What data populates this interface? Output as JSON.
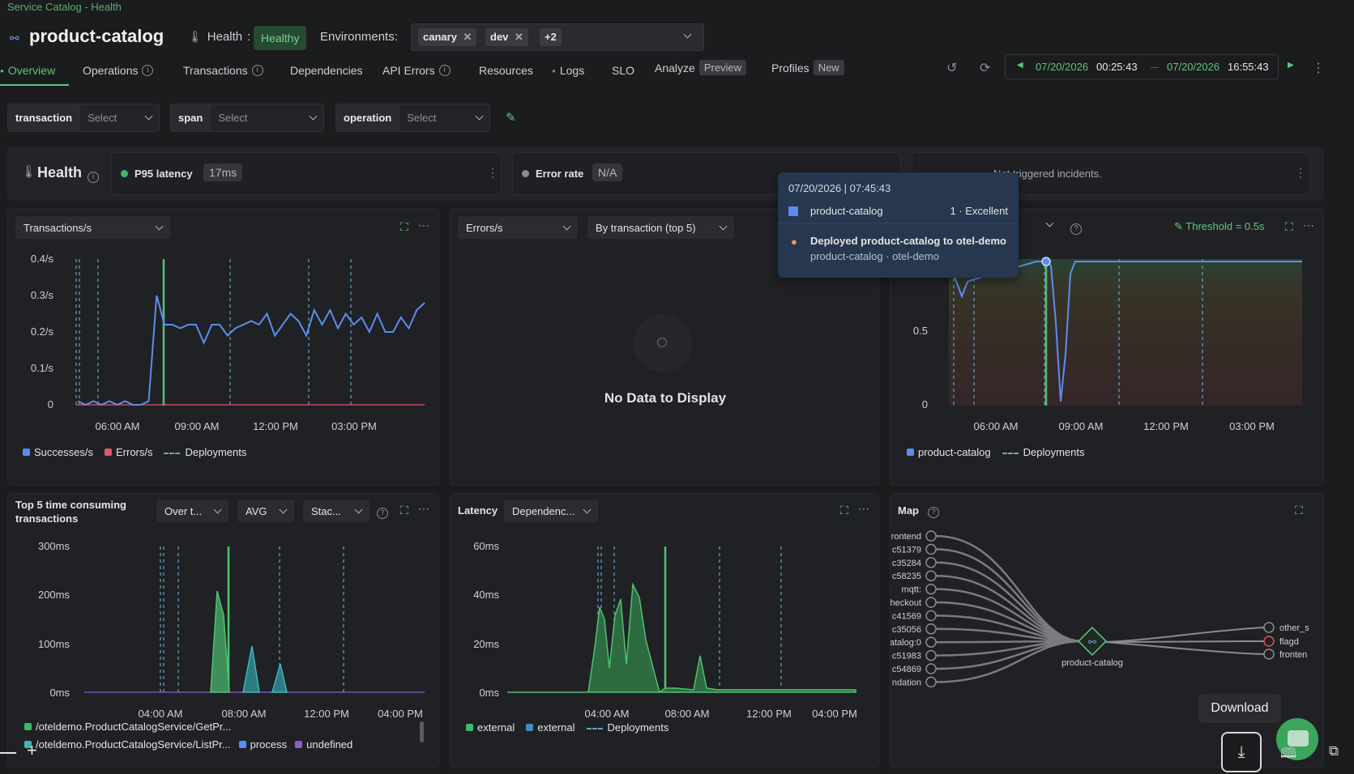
{
  "breadcrumb": "Service Catalog - Health",
  "service": {
    "name": "product-catalog",
    "health_label": "Health",
    "health_sep": ":",
    "health_status": "Healthy"
  },
  "environments": {
    "label": "Environments:",
    "chips": [
      "canary",
      "dev"
    ],
    "more": "+2"
  },
  "tabs": [
    "Overview",
    "Operations",
    "Transactions",
    "Dependencies",
    "API Errors",
    "Resources",
    "Logs",
    "SLO",
    "Analyze",
    "Profiles"
  ],
  "tab_badges": {
    "analyze": "Preview",
    "profiles": "New"
  },
  "time_range": {
    "start_date": "07/20/2026",
    "start_time": "00:25:43",
    "end_date": "07/20/2026",
    "end_time": "16:55:43"
  },
  "filters": [
    {
      "key": "transaction",
      "placeholder": "Select"
    },
    {
      "key": "span",
      "placeholder": "Select"
    },
    {
      "key": "operation",
      "placeholder": "Select"
    }
  ],
  "health_band": {
    "title": "Health",
    "p95_label": "P95 latency",
    "p95_value": "17ms",
    "error_label": "Error rate",
    "error_value": "N/A",
    "incidents_text": "Not triggered incidents."
  },
  "panel1": {
    "dropdown": "Transactions/s",
    "chart_data": {
      "type": "line",
      "y_ticks": [
        "0.4/s",
        "0.3/s",
        "0.2/s",
        "0.1/s",
        "0"
      ],
      "x_ticks": [
        "06:00 AM",
        "09:00 AM",
        "12:00 PM",
        "03:00 PM"
      ],
      "series": [
        {
          "name": "Successes/s",
          "color": "#5b8def",
          "values": [
            0.01,
            0.0,
            0.01,
            0.0,
            0.01,
            0.0,
            0.01,
            0.0,
            0.0,
            0.01,
            0.3,
            0.22,
            0.22,
            0.21,
            0.22,
            0.22,
            0.17,
            0.22,
            0.22,
            0.19,
            0.21,
            0.22,
            0.23,
            0.22,
            0.25,
            0.19,
            0.22,
            0.25,
            0.23,
            0.19,
            0.26,
            0.22,
            0.26,
            0.21,
            0.25,
            0.22,
            0.24,
            0.2,
            0.25,
            0.2,
            0.2,
            0.24,
            0.21,
            0.26,
            0.28
          ]
        },
        {
          "name": "Errors/s",
          "color": "#e2546e",
          "values": [
            0,
            0,
            0
          ]
        }
      ],
      "legend": [
        "Successes/s",
        "Errors/s",
        "Deployments"
      ]
    }
  },
  "panel2": {
    "dropdown1": "Errors/s",
    "dropdown2": "By transaction (top 5)",
    "empty": "No Data to Display"
  },
  "panel3": {
    "threshold": "Threshold = 0.5s",
    "chart_data": {
      "type": "line",
      "y_ticks": [
        "0.5",
        "0"
      ],
      "x_ticks": [
        "06:00 AM",
        "09:00 AM",
        "12:00 PM",
        "03:00 PM"
      ],
      "series": [
        {
          "name": "product-catalog",
          "color": "#5b8def"
        }
      ],
      "legend": [
        "product-catalog",
        "Deployments"
      ]
    }
  },
  "tooltip": {
    "time": "07/20/2026 | 07:45:43",
    "service": "product-catalog",
    "value": "1 · Excellent",
    "deploy_title": "Deployed product-catalog to otel-demo",
    "deploy_sub": "product-catalog · otel-demo"
  },
  "panel4": {
    "title": "Top 5 time consuming transactions",
    "dd1": "Over t...",
    "dd2": "AVG",
    "dd3": "Stac...",
    "chart_data": {
      "type": "area",
      "y_ticks": [
        "300ms",
        "200ms",
        "100ms",
        "0ms"
      ],
      "x_ticks": [
        "04:00 AM",
        "08:00 AM",
        "12:00 PM",
        "04:00 PM"
      ]
    },
    "legend": [
      "/oteldemo.ProductCatalogService/GetPr...",
      "/oteldemo.ProductCatalogService/ListPr...",
      "process",
      "undefined"
    ]
  },
  "panel5": {
    "title": "Latency",
    "dd": "Dependenc...",
    "chart_data": {
      "type": "area",
      "y_ticks": [
        "60ms",
        "40ms",
        "20ms",
        "0ms"
      ],
      "x_ticks": [
        "04:00 AM",
        "08:00 AM",
        "12:00 PM",
        "04:00 PM"
      ]
    },
    "legend": [
      "external",
      "external",
      "Deployments"
    ]
  },
  "panel6": {
    "title": "Map",
    "left_nodes": [
      "rontend",
      "c51379",
      "c35284",
      "c58235",
      "mqtt:",
      "heckout",
      "c41569",
      "c35056",
      "atalog:0",
      "c51983",
      "c54869",
      "ndation"
    ],
    "center": "product-catalog",
    "right_nodes": [
      "other_s",
      "flagd",
      "fronten"
    ]
  },
  "download_tooltip": "Download",
  "colors": {
    "accent": "#5cc77a",
    "blue": "#5b8def",
    "red": "#e2546e",
    "deploy": "#62a6c8"
  }
}
